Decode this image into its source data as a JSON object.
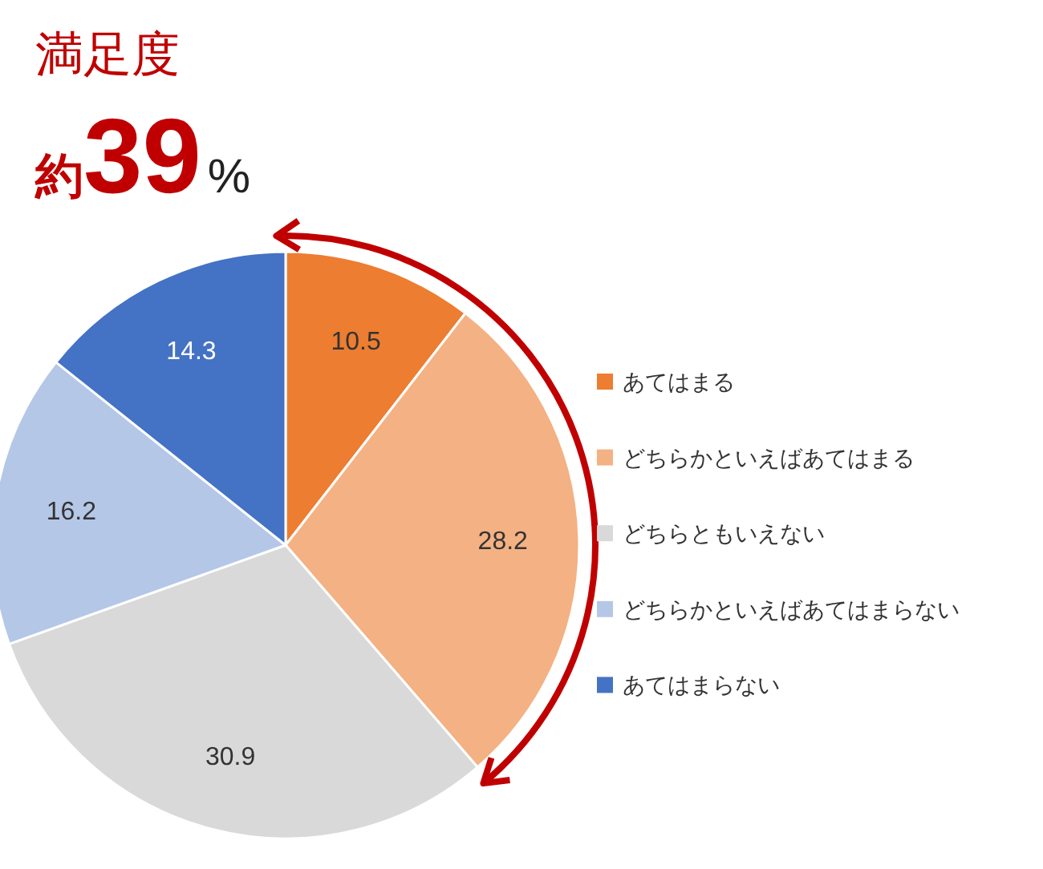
{
  "chart_data": {
    "type": "pie",
    "title": "満足度",
    "subtitle": "約39%",
    "categories": [
      "あてはまる",
      "どちらかといえばあてはまる",
      "どちらともいえない",
      "どちらかといえばあてはまらない",
      "あてはまらない"
    ],
    "values": [
      10.5,
      28.2,
      30.9,
      16.2,
      14.3
    ],
    "colors": [
      "#ed7d31",
      "#f4b183",
      "#d9d9d9",
      "#b4c7e7",
      "#4472c4"
    ],
    "data_labels": true,
    "legend": "right"
  }
}
